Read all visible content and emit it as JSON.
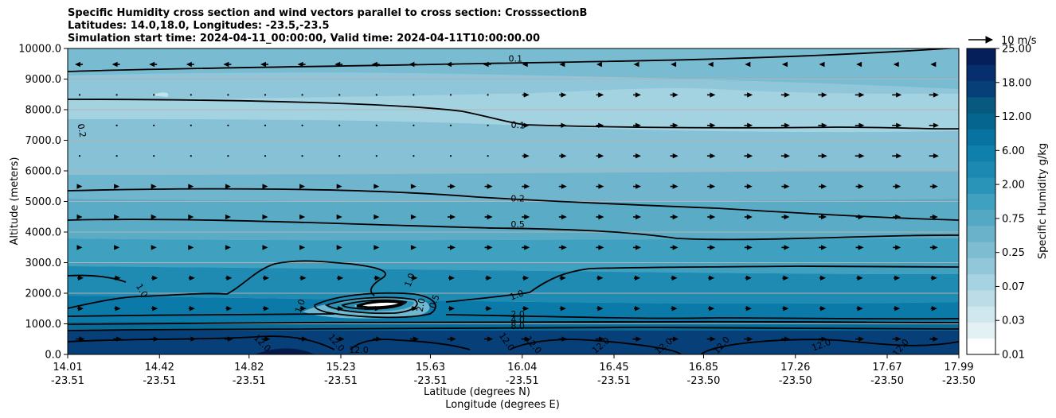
{
  "chart_data": {
    "type": "filled-contour",
    "title_lines": [
      "Specific Humidity cross section and wind vectors parallel to cross section: CrosssectionB",
      "Latitudes: 14.0,18.0, Longitudes: -23.5,-23.5",
      "Simulation start time: 2024-04-11_00:00:00, Valid time: 2024-04-11T10:00:00.00"
    ],
    "ylabel": "Altitude (meters)",
    "xlabel_lat": "Latitude (degrees N)",
    "xlabel_lon": "Longitude (degrees E)",
    "ylim": [
      0,
      10000
    ],
    "yticks": [
      "0.0",
      "1000.0",
      "2000.0",
      "3000.0",
      "4000.0",
      "5000.0",
      "6000.0",
      "7000.0",
      "8000.0",
      "9000.0",
      "10000.0"
    ],
    "xticks": [
      {
        "lat": "14.01",
        "lon": "-23.51"
      },
      {
        "lat": "14.42",
        "lon": "-23.51"
      },
      {
        "lat": "14.82",
        "lon": "-23.51"
      },
      {
        "lat": "15.23",
        "lon": "-23.51"
      },
      {
        "lat": "15.63",
        "lon": "-23.51"
      },
      {
        "lat": "16.04",
        "lon": "-23.51"
      },
      {
        "lat": "16.45",
        "lon": "-23.51"
      },
      {
        "lat": "16.85",
        "lon": "-23.50"
      },
      {
        "lat": "17.26",
        "lon": "-23.50"
      },
      {
        "lat": "17.67",
        "lon": "-23.50"
      },
      {
        "lat": "17.99",
        "lon": "-23.50"
      }
    ],
    "xlim": [
      14.01,
      17.99
    ],
    "colorbar": {
      "label": "Specific Humidity g/kg",
      "ticks": [
        "0.01",
        "0.03",
        "0.07",
        "0.25",
        "0.75",
        "2.00",
        "6.00",
        "12.00",
        "18.00",
        "25.00"
      ],
      "colors": [
        "#ffffff",
        "#e3f1f5",
        "#cfe7ee",
        "#bcdde7",
        "#a6d3e1",
        "#92c7da",
        "#7ebcd2",
        "#6ab2ca",
        "#55a8c4",
        "#40a0c0",
        "#2a94b8",
        "#1c89b2",
        "#0f7fab",
        "#0872a1",
        "#06658f",
        "#07597f",
        "#073f78",
        "#062f6e",
        "#041f5a"
      ]
    },
    "wind_key": "10 m/s",
    "contour_labels": [
      {
        "text": "0.1",
        "x": 16.01,
        "y": 9570,
        "rot": 0
      },
      {
        "text": "0.1",
        "x": 16.02,
        "y": 7400,
        "rot": 4
      },
      {
        "text": "0.2",
        "x": 14.06,
        "y": 7300,
        "rot": 80
      },
      {
        "text": "0.2",
        "x": 16.02,
        "y": 5000,
        "rot": 0
      },
      {
        "text": "0.5",
        "x": 16.02,
        "y": 4150,
        "rot": 0
      },
      {
        "text": "1.0",
        "x": 14.33,
        "y": 2040,
        "rot": 60
      },
      {
        "text": "1.0",
        "x": 15.06,
        "y": 1550,
        "rot": -70
      },
      {
        "text": "1.0",
        "x": 15.55,
        "y": 2400,
        "rot": -70
      },
      {
        "text": "1.0",
        "x": 16.02,
        "y": 1850,
        "rot": -20
      },
      {
        "text": "0.5",
        "x": 15.66,
        "y": 1700,
        "rot": -70
      },
      {
        "text": "2.0",
        "x": 15.6,
        "y": 1600,
        "rot": -80
      },
      {
        "text": "2.0",
        "x": 16.02,
        "y": 1220,
        "rot": 0
      },
      {
        "text": "4.0",
        "x": 16.02,
        "y": 1040,
        "rot": 0
      },
      {
        "text": "8.0",
        "x": 16.02,
        "y": 830,
        "rot": 0
      },
      {
        "text": "12.0",
        "x": 14.87,
        "y": 300,
        "rot": 45
      },
      {
        "text": "12.0",
        "x": 15.2,
        "y": 320,
        "rot": 50
      },
      {
        "text": "12.0",
        "x": 15.31,
        "y": 50,
        "rot": 0
      },
      {
        "text": "12.0",
        "x": 15.96,
        "y": 360,
        "rot": 55
      },
      {
        "text": "12.0",
        "x": 16.08,
        "y": 250,
        "rot": 50
      },
      {
        "text": "12.0",
        "x": 16.4,
        "y": 220,
        "rot": -40
      },
      {
        "text": "12.0",
        "x": 16.68,
        "y": 200,
        "rot": -40
      },
      {
        "text": "12.0",
        "x": 16.94,
        "y": 240,
        "rot": -50
      },
      {
        "text": "12.0",
        "x": 17.38,
        "y": 220,
        "rot": -20
      },
      {
        "text": "12.0",
        "x": 17.74,
        "y": 160,
        "rot": -50
      }
    ]
  }
}
